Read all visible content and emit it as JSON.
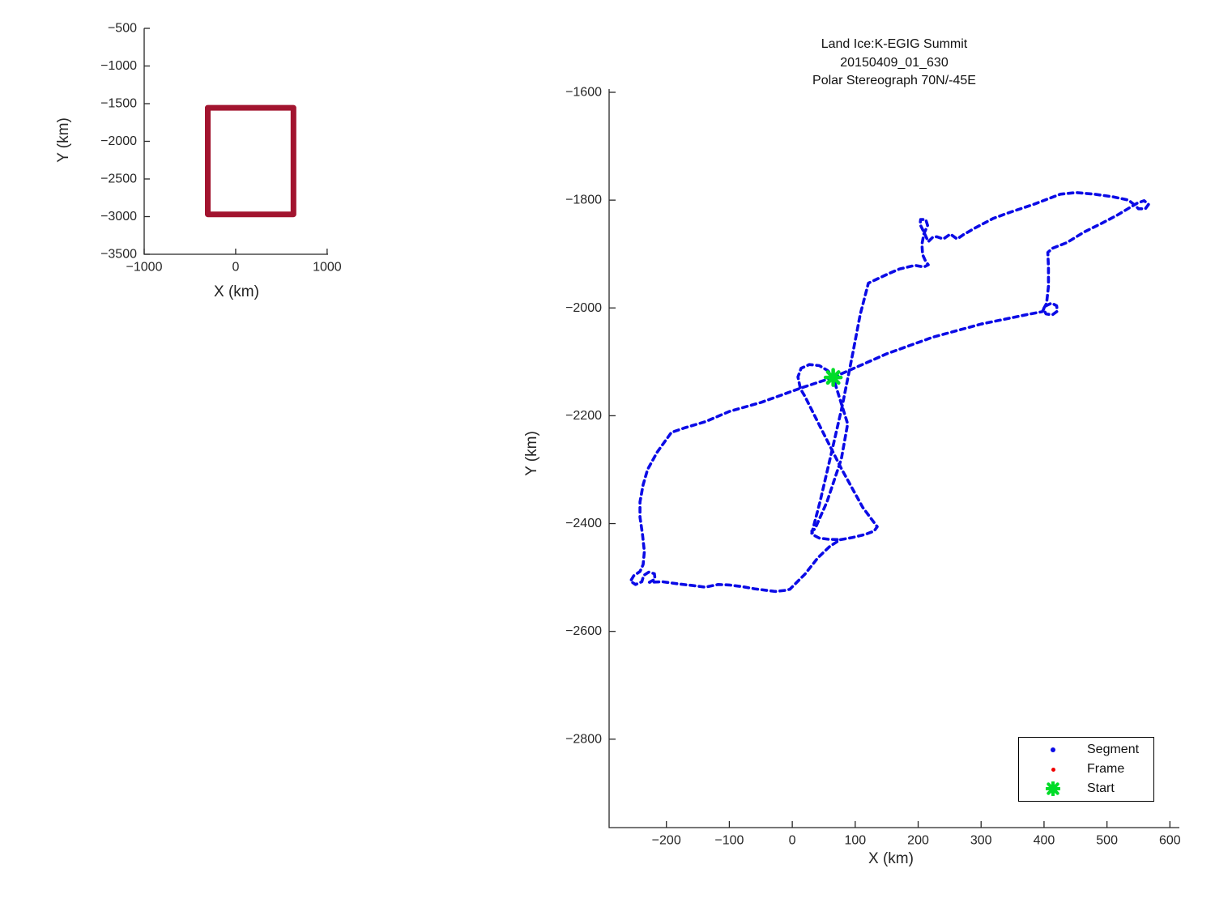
{
  "chart_data": [
    {
      "type": "line",
      "name": "overview-map",
      "xlabel": "X (km)",
      "ylabel": "Y (km)",
      "xlim": [
        -1000,
        1010
      ],
      "ylim": [
        -3500,
        -500
      ],
      "xticks": [
        -1000,
        0,
        1000
      ],
      "yticks": [
        -500,
        -1000,
        -1500,
        -2000,
        -2500,
        -3000,
        -3500
      ],
      "grid": false,
      "series": [
        {
          "name": "flight-area-box",
          "color": "#A2142F",
          "linewidth": 7,
          "dashed": false,
          "points": [
            [
              -305,
              -1555
            ],
            [
              632,
              -1555
            ],
            [
              632,
              -2970
            ],
            [
              -305,
              -2970
            ],
            [
              -305,
              -1555
            ]
          ]
        }
      ]
    },
    {
      "type": "line",
      "name": "flight-track",
      "title_lines": [
        "Land Ice:K-EGIG Summit",
        "20150409_01_630",
        "Polar Stereograph 70N/-45E"
      ],
      "xlabel": "X (km)",
      "ylabel": "Y (km)",
      "xlim": [
        -291,
        615
      ],
      "ylim": [
        -2964,
        -1594
      ],
      "xticks": [
        -200,
        -100,
        0,
        100,
        200,
        300,
        400,
        500,
        600
      ],
      "yticks": [
        -1600,
        -1800,
        -2000,
        -2200,
        -2400,
        -2600,
        -2800
      ],
      "grid": false,
      "series": [
        {
          "name": "segment-track-north-loop",
          "color": "#0B0BE6",
          "linewidth": 3.6,
          "dashed": true,
          "points": [
            [
              65,
              -2129
            ],
            [
              92,
              -2115
            ],
            [
              150,
              -2085
            ],
            [
              224,
              -2054
            ],
            [
              300,
              -2030
            ],
            [
              374,
              -2012
            ],
            [
              397,
              -2007
            ],
            [
              403,
              -1996
            ],
            [
              412,
              -1991
            ],
            [
              420,
              -1996
            ],
            [
              421,
              -2006
            ],
            [
              413,
              -2013
            ],
            [
              403,
              -2011
            ],
            [
              399,
              -2002
            ],
            [
              404,
              -1992
            ],
            [
              407,
              -1960
            ],
            [
              407,
              -1925
            ],
            [
              406,
              -1897
            ],
            [
              414,
              -1889
            ],
            [
              436,
              -1879
            ],
            [
              464,
              -1859
            ],
            [
              490,
              -1844
            ],
            [
              516,
              -1828
            ],
            [
              539,
              -1812
            ],
            [
              549,
              -1805
            ],
            [
              559,
              -1801
            ],
            [
              566,
              -1808
            ],
            [
              561,
              -1816
            ],
            [
              550,
              -1816
            ],
            [
              544,
              -1809
            ],
            [
              534,
              -1800
            ],
            [
              510,
              -1794
            ],
            [
              480,
              -1789
            ],
            [
              451,
              -1786
            ],
            [
              426,
              -1789
            ],
            [
              383,
              -1808
            ],
            [
              345,
              -1823
            ],
            [
              319,
              -1834
            ],
            [
              290,
              -1852
            ],
            [
              272,
              -1864
            ],
            [
              262,
              -1872
            ],
            [
              251,
              -1863
            ],
            [
              240,
              -1872
            ],
            [
              230,
              -1868
            ],
            [
              224,
              -1868
            ],
            [
              216,
              -1877
            ],
            [
              209,
              -1859
            ],
            [
              203,
              -1845
            ],
            [
              204,
              -1836
            ],
            [
              212,
              -1836
            ],
            [
              215,
              -1847
            ],
            [
              209,
              -1863
            ],
            [
              206,
              -1882
            ],
            [
              207,
              -1901
            ],
            [
              212,
              -1914
            ],
            [
              216,
              -1920
            ],
            [
              209,
              -1924
            ],
            [
              195,
              -1921
            ],
            [
              170,
              -1928
            ],
            [
              152,
              -1937
            ],
            [
              121,
              -1954
            ],
            [
              108,
              -2012
            ],
            [
              96,
              -2085
            ],
            [
              79,
              -2184
            ],
            [
              62,
              -2270
            ],
            [
              44,
              -2360
            ],
            [
              31,
              -2418
            ]
          ]
        },
        {
          "name": "segment-track-south-loop",
          "color": "#0B0BE6",
          "linewidth": 3.6,
          "dashed": true,
          "points": [
            [
              65,
              -2129
            ],
            [
              15,
              -2148
            ],
            [
              -49,
              -2175
            ],
            [
              -100,
              -2192
            ],
            [
              -138,
              -2211
            ],
            [
              -170,
              -2222
            ],
            [
              -192,
              -2231
            ],
            [
              -215,
              -2268
            ],
            [
              -230,
              -2300
            ],
            [
              -237,
              -2328
            ],
            [
              -242,
              -2360
            ],
            [
              -242,
              -2388
            ],
            [
              -238,
              -2420
            ],
            [
              -235,
              -2452
            ],
            [
              -237,
              -2476
            ],
            [
              -242,
              -2489
            ],
            [
              -252,
              -2497
            ],
            [
              -257,
              -2507
            ],
            [
              -249,
              -2513
            ],
            [
              -239,
              -2508
            ],
            [
              -236,
              -2496
            ],
            [
              -228,
              -2490
            ],
            [
              -219,
              -2493
            ],
            [
              -218,
              -2503
            ],
            [
              -227,
              -2509
            ],
            [
              -206,
              -2508
            ],
            [
              -181,
              -2512
            ],
            [
              -158,
              -2515
            ],
            [
              -138,
              -2518
            ],
            [
              -118,
              -2513
            ],
            [
              -100,
              -2514
            ],
            [
              -80,
              -2517
            ],
            [
              -60,
              -2521
            ],
            [
              -40,
              -2524
            ],
            [
              -27,
              -2526
            ],
            [
              -12,
              -2524
            ],
            [
              -4,
              -2522
            ],
            [
              20,
              -2494
            ],
            [
              41,
              -2463
            ],
            [
              60,
              -2442
            ],
            [
              76,
              -2430
            ],
            [
              95,
              -2426
            ],
            [
              116,
              -2420
            ],
            [
              130,
              -2414
            ],
            [
              135,
              -2406
            ],
            [
              112,
              -2370
            ],
            [
              78,
              -2298
            ],
            [
              45,
              -2222
            ],
            [
              20,
              -2164
            ],
            [
              13,
              -2150
            ],
            [
              9,
              -2128
            ],
            [
              14,
              -2112
            ],
            [
              27,
              -2105
            ],
            [
              43,
              -2107
            ],
            [
              56,
              -2116
            ],
            [
              63,
              -2124
            ],
            [
              65,
              -2129
            ],
            [
              88,
              -2215
            ],
            [
              78,
              -2280
            ],
            [
              55,
              -2360
            ],
            [
              36,
              -2410
            ],
            [
              31,
              -2414
            ],
            [
              33,
              -2421
            ],
            [
              43,
              -2427
            ],
            [
              57,
              -2429
            ],
            [
              76,
              -2430
            ]
          ]
        }
      ],
      "start_point": {
        "x": 65,
        "y": -2129,
        "color": "#00DC28"
      },
      "legend": {
        "position": "lower right",
        "items": [
          {
            "label": "Segment",
            "marker": "dot",
            "color": "#0B0BE6",
            "size": 6
          },
          {
            "label": "Frame",
            "marker": "dot",
            "color": "#F00000",
            "size": 5
          },
          {
            "label": "Start",
            "marker": "asterisk",
            "color": "#00DC28",
            "size": 18
          }
        ]
      }
    }
  ]
}
